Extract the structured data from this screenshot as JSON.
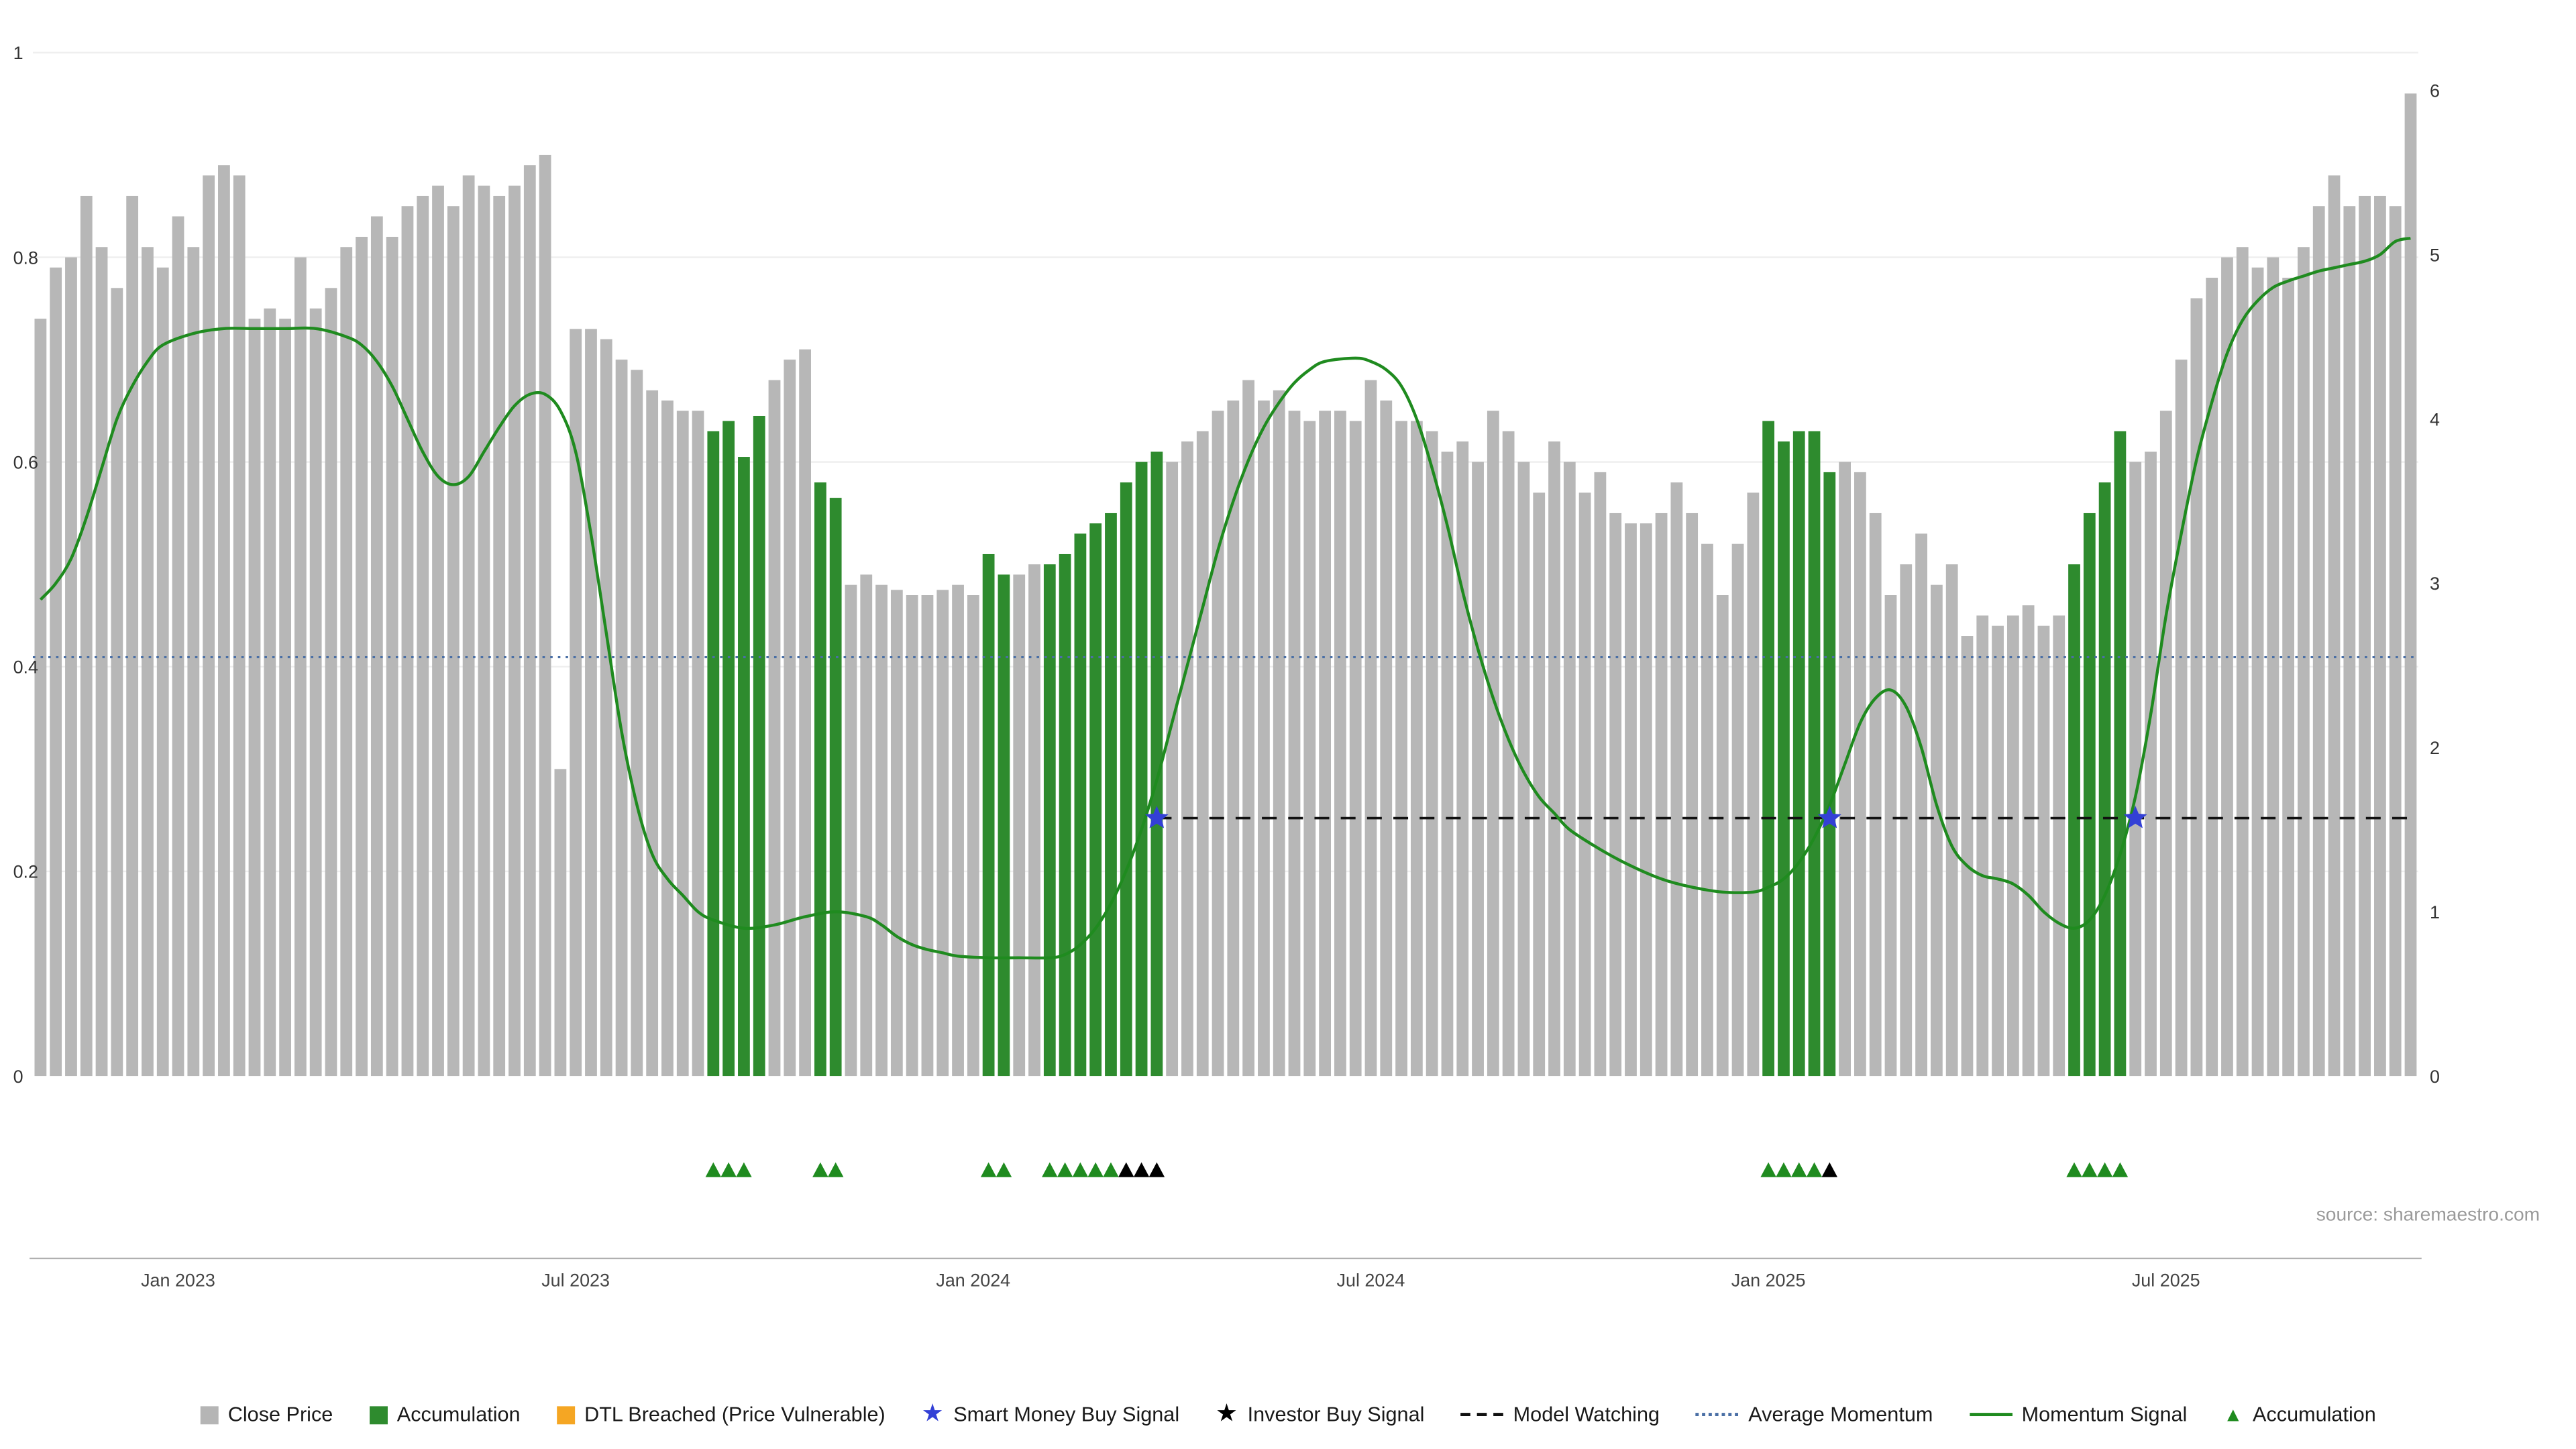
{
  "chart_data": {
    "type": "combo_bar_line",
    "title": "",
    "source": "source: sharemaestro.com",
    "grid": true,
    "x_ticks": [
      {
        "index": 9,
        "label": "Jan 2023"
      },
      {
        "index": 35,
        "label": "Jul 2023"
      },
      {
        "index": 61,
        "label": "Jan 2024"
      },
      {
        "index": 87,
        "label": "Jul 2024"
      },
      {
        "index": 113,
        "label": "Jan 2025"
      },
      {
        "index": 139,
        "label": "Jul 2025"
      }
    ],
    "left_axis": {
      "min": 0,
      "max": 1,
      "ticks": [
        0,
        0.2,
        0.4,
        0.6,
        0.8,
        1
      ],
      "labels": [
        "0",
        "0.2",
        "0.4",
        "0.6",
        "0.8",
        "1"
      ]
    },
    "right_axis": {
      "min": 0,
      "max": 6,
      "ticks": [
        0,
        1,
        2,
        3,
        4,
        5,
        6
      ],
      "labels": [
        "0",
        "1",
        "2",
        "3",
        "4",
        "5",
        "6"
      ]
    },
    "bars": {
      "name": "Close Price",
      "axis": "left",
      "color": "#b7b7b7",
      "accumulation_color": "#2e8b2e",
      "values": [
        0.74,
        0.79,
        0.8,
        0.86,
        0.81,
        0.77,
        0.86,
        0.81,
        0.79,
        0.84,
        0.81,
        0.88,
        0.89,
        0.88,
        0.74,
        0.75,
        0.74,
        0.8,
        0.75,
        0.77,
        0.81,
        0.82,
        0.84,
        0.82,
        0.85,
        0.86,
        0.87,
        0.85,
        0.88,
        0.87,
        0.86,
        0.87,
        0.89,
        0.9,
        0.3,
        0.73,
        0.73,
        0.72,
        0.7,
        0.69,
        0.67,
        0.66,
        0.65,
        0.65,
        0.63,
        0.64,
        0.605,
        0.645,
        0.68,
        0.7,
        0.71,
        0.58,
        0.565,
        0.48,
        0.49,
        0.48,
        0.475,
        0.47,
        0.47,
        0.475,
        0.48,
        0.47,
        0.51,
        0.49,
        0.49,
        0.5,
        0.5,
        0.51,
        0.53,
        0.54,
        0.55,
        0.58,
        0.6,
        0.61,
        0.6,
        0.62,
        0.63,
        0.65,
        0.66,
        0.68,
        0.66,
        0.67,
        0.65,
        0.64,
        0.65,
        0.65,
        0.64,
        0.68,
        0.66,
        0.64,
        0.64,
        0.63,
        0.61,
        0.62,
        0.6,
        0.65,
        0.63,
        0.6,
        0.57,
        0.62,
        0.6,
        0.57,
        0.59,
        0.55,
        0.54,
        0.54,
        0.55,
        0.58,
        0.55,
        0.52,
        0.47,
        0.52,
        0.57,
        0.64,
        0.62,
        0.63,
        0.63,
        0.59,
        0.6,
        0.59,
        0.55,
        0.47,
        0.5,
        0.53,
        0.48,
        0.5,
        0.43,
        0.45,
        0.44,
        0.45,
        0.46,
        0.44,
        0.45,
        0.5,
        0.55,
        0.58,
        0.63,
        0.6,
        0.61,
        0.65,
        0.7,
        0.76,
        0.78,
        0.8,
        0.81,
        0.79,
        0.8,
        0.78,
        0.81,
        0.85,
        0.88,
        0.85,
        0.86,
        0.86,
        0.85,
        0.96
      ],
      "accumulation_indices": [
        44,
        45,
        46,
        47,
        51,
        52,
        62,
        63,
        66,
        67,
        68,
        69,
        70,
        71,
        72,
        73,
        113,
        114,
        115,
        116,
        117,
        133,
        134,
        135,
        136
      ]
    },
    "momentum": {
      "name": "Momentum Signal",
      "axis": "right",
      "color": "#1f8b1f",
      "points": [
        [
          0,
          2.9
        ],
        [
          1,
          3.0
        ],
        [
          2,
          3.15
        ],
        [
          3,
          3.4
        ],
        [
          4,
          3.7
        ],
        [
          5,
          4.0
        ],
        [
          6,
          4.2
        ],
        [
          7,
          4.35
        ],
        [
          8,
          4.45
        ],
        [
          10,
          4.52
        ],
        [
          12,
          4.55
        ],
        [
          14,
          4.55
        ],
        [
          16,
          4.55
        ],
        [
          18,
          4.55
        ],
        [
          20,
          4.5
        ],
        [
          21,
          4.45
        ],
        [
          22,
          4.35
        ],
        [
          23,
          4.2
        ],
        [
          24,
          4.0
        ],
        [
          25,
          3.8
        ],
        [
          26,
          3.65
        ],
        [
          27,
          3.6
        ],
        [
          28,
          3.65
        ],
        [
          29,
          3.8
        ],
        [
          30,
          3.95
        ],
        [
          31,
          4.08
        ],
        [
          32,
          4.15
        ],
        [
          33,
          4.15
        ],
        [
          34,
          4.05
        ],
        [
          35,
          3.8
        ],
        [
          36,
          3.3
        ],
        [
          37,
          2.7
        ],
        [
          38,
          2.1
        ],
        [
          39,
          1.65
        ],
        [
          40,
          1.35
        ],
        [
          41,
          1.2
        ],
        [
          42,
          1.1
        ],
        [
          43,
          1.0
        ],
        [
          44,
          0.95
        ],
        [
          46,
          0.9
        ],
        [
          48,
          0.92
        ],
        [
          50,
          0.97
        ],
        [
          52,
          1.0
        ],
        [
          54,
          0.97
        ],
        [
          55,
          0.92
        ],
        [
          56,
          0.85
        ],
        [
          57,
          0.8
        ],
        [
          58,
          0.77
        ],
        [
          59,
          0.75
        ],
        [
          60,
          0.73
        ],
        [
          62,
          0.72
        ],
        [
          64,
          0.72
        ],
        [
          66,
          0.72
        ],
        [
          67,
          0.74
        ],
        [
          68,
          0.8
        ],
        [
          69,
          0.9
        ],
        [
          70,
          1.05
        ],
        [
          71,
          1.25
        ],
        [
          72,
          1.5
        ],
        [
          73,
          1.8
        ],
        [
          74,
          2.15
        ],
        [
          75,
          2.5
        ],
        [
          76,
          2.85
        ],
        [
          77,
          3.2
        ],
        [
          78,
          3.5
        ],
        [
          79,
          3.75
        ],
        [
          80,
          3.95
        ],
        [
          81,
          4.1
        ],
        [
          82,
          4.22
        ],
        [
          83,
          4.3
        ],
        [
          84,
          4.35
        ],
        [
          86,
          4.37
        ],
        [
          87,
          4.35
        ],
        [
          88,
          4.3
        ],
        [
          89,
          4.2
        ],
        [
          90,
          4.0
        ],
        [
          91,
          3.7
        ],
        [
          92,
          3.35
        ],
        [
          93,
          2.95
        ],
        [
          94,
          2.6
        ],
        [
          95,
          2.3
        ],
        [
          96,
          2.05
        ],
        [
          97,
          1.85
        ],
        [
          98,
          1.7
        ],
        [
          99,
          1.6
        ],
        [
          100,
          1.5
        ],
        [
          102,
          1.38
        ],
        [
          104,
          1.28
        ],
        [
          106,
          1.2
        ],
        [
          108,
          1.15
        ],
        [
          110,
          1.12
        ],
        [
          112,
          1.12
        ],
        [
          113,
          1.15
        ],
        [
          114,
          1.2
        ],
        [
          115,
          1.3
        ],
        [
          116,
          1.45
        ],
        [
          117,
          1.65
        ],
        [
          118,
          1.9
        ],
        [
          119,
          2.15
        ],
        [
          120,
          2.3
        ],
        [
          121,
          2.35
        ],
        [
          122,
          2.25
        ],
        [
          123,
          2.0
        ],
        [
          124,
          1.65
        ],
        [
          125,
          1.4
        ],
        [
          126,
          1.28
        ],
        [
          127,
          1.22
        ],
        [
          128,
          1.2
        ],
        [
          129,
          1.17
        ],
        [
          130,
          1.1
        ],
        [
          131,
          1.0
        ],
        [
          132,
          0.93
        ],
        [
          133,
          0.9
        ],
        [
          134,
          0.95
        ],
        [
          135,
          1.1
        ],
        [
          136,
          1.35
        ],
        [
          137,
          1.7
        ],
        [
          138,
          2.2
        ],
        [
          139,
          2.8
        ],
        [
          140,
          3.3
        ],
        [
          141,
          3.75
        ],
        [
          142,
          4.1
        ],
        [
          143,
          4.4
        ],
        [
          144,
          4.6
        ],
        [
          145,
          4.72
        ],
        [
          146,
          4.8
        ],
        [
          147,
          4.84
        ],
        [
          148,
          4.87
        ],
        [
          149,
          4.9
        ],
        [
          150,
          4.92
        ],
        [
          151,
          4.94
        ],
        [
          152,
          4.96
        ],
        [
          153,
          5.0
        ],
        [
          154,
          5.08
        ],
        [
          155,
          5.1
        ]
      ]
    },
    "model_watching": {
      "name": "Model Watching",
      "axis": "right",
      "value": 1.57,
      "start_index": 73,
      "color": "#111111"
    },
    "average_momentum": {
      "name": "Average Momentum",
      "axis": "right",
      "value": 2.55,
      "color": "#4a6fa5"
    },
    "smart_money_signals": {
      "name": "Smart Money Buy Signal",
      "indices": [
        73,
        117,
        137
      ],
      "value": 1.57,
      "color": "#3340d6"
    },
    "accumulation_markers": {
      "name": "Accumulation",
      "indices": [
        44,
        45,
        46,
        51,
        52,
        62,
        63,
        66,
        67,
        68,
        69,
        70,
        113,
        114,
        115,
        116,
        133,
        134,
        135,
        136
      ],
      "color": "#1f8b1f"
    },
    "investor_signals": {
      "name": "Investor Buy Signal",
      "indices": [
        71,
        72,
        73,
        117
      ],
      "color": "#000000"
    }
  },
  "legend": {
    "items": [
      {
        "label": "Close Price",
        "swatch": "square",
        "color": "#b5b5b5"
      },
      {
        "label": "Accumulation",
        "swatch": "square",
        "color": "#2e8b2e"
      },
      {
        "label": "DTL Breached (Price Vulnerable)",
        "swatch": "square",
        "color": "#f5a623"
      },
      {
        "label": "Smart Money Buy Signal",
        "swatch": "star",
        "color": "#3340d6"
      },
      {
        "label": "Investor Buy Signal",
        "swatch": "star",
        "color": "#000000"
      },
      {
        "label": "Model Watching",
        "swatch": "dash",
        "color": "#111111"
      },
      {
        "label": "Average Momentum",
        "swatch": "dots",
        "color": "#4a6fa5"
      },
      {
        "label": "Momentum Signal",
        "swatch": "line",
        "color": "#1f8b1f"
      },
      {
        "label": "Accumulation",
        "swatch": "triangle",
        "color": "#1f8b1f"
      }
    ]
  }
}
